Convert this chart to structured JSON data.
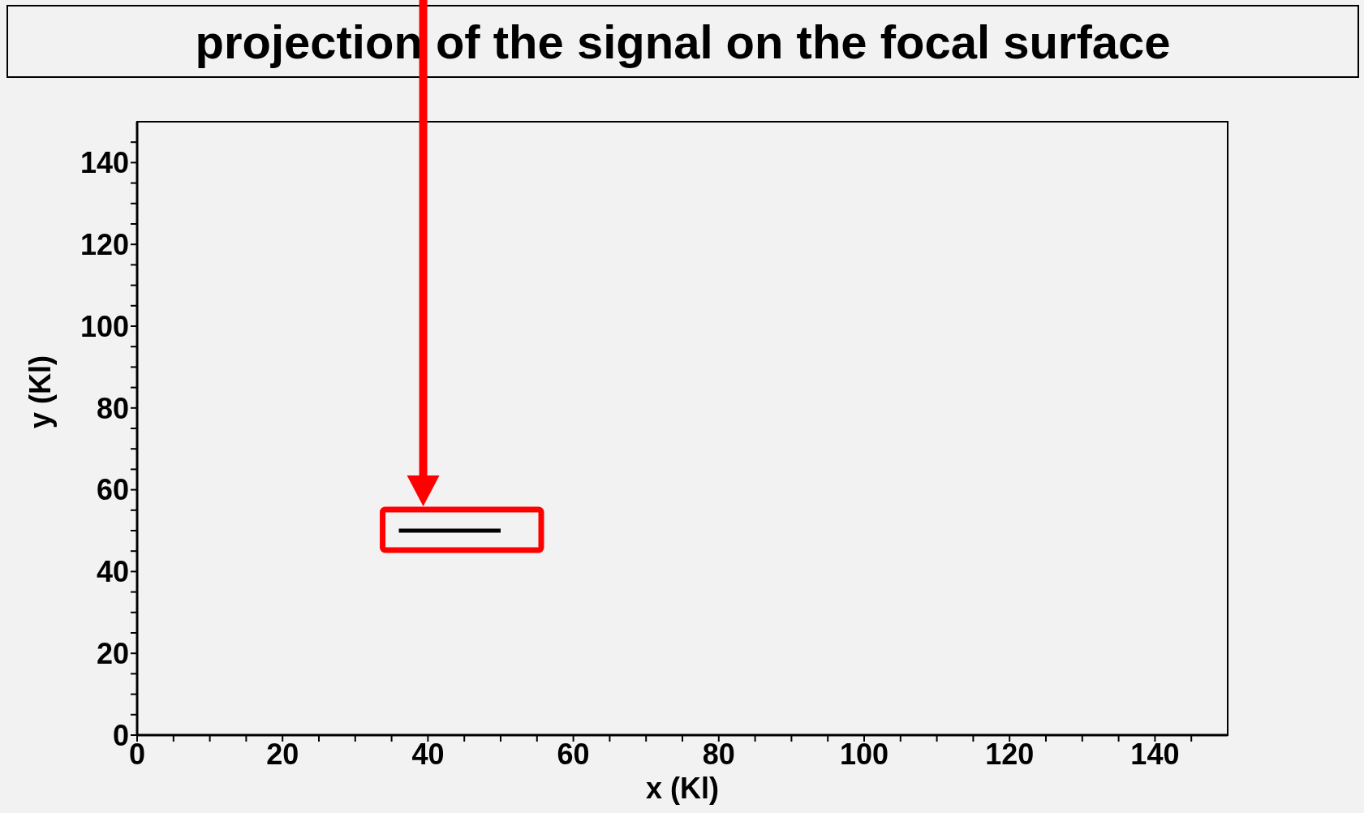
{
  "chart_data": {
    "type": "line",
    "title": "projection of the signal on the focal surface",
    "xlabel": "x (Kl)",
    "ylabel": "y (Kl)",
    "series": [
      {
        "color": "#000000",
        "x": [
          36,
          50
        ],
        "values": [
          50,
          50
        ]
      }
    ],
    "xlim": [
      0,
      150
    ],
    "ylim": [
      0,
      150
    ],
    "xticks": [
      0,
      {
        "value": 5,
        "label": null
      },
      {
        "value": 10,
        "label": null
      },
      {
        "value": 15,
        "label": null
      },
      20,
      {
        "value": 25,
        "label": null
      },
      {
        "value": 30,
        "label": null
      },
      {
        "value": 35,
        "label": null
      },
      40,
      {
        "value": 45,
        "label": null
      },
      {
        "value": 50,
        "label": null
      },
      {
        "value": 55,
        "label": null
      },
      60,
      {
        "value": 65,
        "label": null
      },
      {
        "value": 70,
        "label": null
      },
      {
        "value": 75,
        "label": null
      },
      80,
      {
        "value": 85,
        "label": null
      },
      {
        "value": 90,
        "label": null
      },
      {
        "value": 95,
        "label": null
      },
      100,
      {
        "value": 105,
        "label": null
      },
      {
        "value": 110,
        "label": null
      },
      {
        "value": 115,
        "label": null
      },
      120,
      {
        "value": 125,
        "label": null
      },
      {
        "value": 130,
        "label": null
      },
      {
        "value": 135,
        "label": null
      },
      140,
      {
        "value": 145,
        "label": null
      }
    ],
    "yticks": [
      0,
      {
        "value": 5,
        "label": null
      },
      {
        "value": 10,
        "label": null
      },
      {
        "value": 15,
        "label": null
      },
      20,
      {
        "value": 25,
        "label": null
      },
      {
        "value": 30,
        "label": null
      },
      {
        "value": 35,
        "label": null
      },
      40,
      {
        "value": 45,
        "label": null
      },
      {
        "value": 50,
        "label": null
      },
      {
        "value": 55,
        "label": null
      },
      60,
      {
        "value": 65,
        "label": null
      },
      {
        "value": 70,
        "label": null
      },
      {
        "value": 75,
        "label": null
      },
      80,
      {
        "value": 85,
        "label": null
      },
      {
        "value": 90,
        "label": null
      },
      {
        "value": 95,
        "label": null
      },
      100,
      {
        "value": 105,
        "label": null
      },
      {
        "value": 110,
        "label": null
      },
      {
        "value": 115,
        "label": null
      },
      120,
      {
        "value": 125,
        "label": null
      },
      {
        "value": 130,
        "label": null
      },
      {
        "value": 135,
        "label": null
      },
      140,
      {
        "value": 145,
        "label": null
      }
    ],
    "marker": "none",
    "line_style": "solid"
  }
}
